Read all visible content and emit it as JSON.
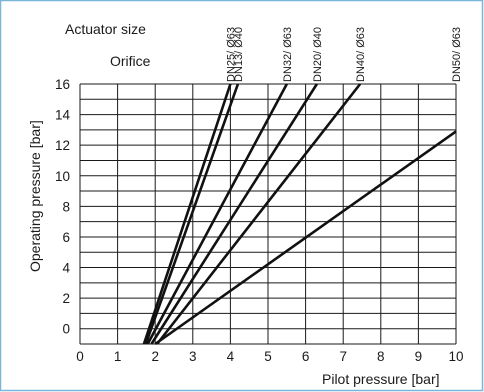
{
  "chart_data": {
    "type": "line",
    "header": {
      "actuator_label": "Actuator size",
      "orifice_label": "Orifice"
    },
    "xlabel": "Pilot pressure [bar]",
    "ylabel": "Operating pressure [bar]",
    "xlim": [
      0,
      10
    ],
    "ylim": [
      -1,
      16
    ],
    "x_ticks": [
      "0",
      "1",
      "2",
      "3",
      "4",
      "5",
      "6",
      "7",
      "8",
      "9",
      "10"
    ],
    "y_ticks": [
      "0",
      "2",
      "4",
      "6",
      "8",
      "10",
      "12",
      "14",
      "16"
    ],
    "grid": true,
    "series": [
      {
        "name": "DN25/ Ø63",
        "x": [
          1.7,
          4.0
        ],
        "y": [
          -1,
          16
        ]
      },
      {
        "name": "DN13/ Ø40",
        "x": [
          1.75,
          4.2
        ],
        "y": [
          -1,
          16
        ]
      },
      {
        "name": "DN32/ Ø63",
        "x": [
          1.8,
          5.5
        ],
        "y": [
          -1,
          16
        ]
      },
      {
        "name": "DN20/ Ø40",
        "x": [
          1.9,
          6.3
        ],
        "y": [
          -1,
          16
        ]
      },
      {
        "name": "DN40/ Ø63",
        "x": [
          2.05,
          7.45
        ],
        "y": [
          -1,
          16
        ]
      },
      {
        "name": "DN50/ Ø63",
        "x": [
          2.0,
          10.0
        ],
        "y": [
          -1,
          12.9
        ]
      }
    ],
    "colors": {
      "frame": "#7ab6d8",
      "grid": "#1a1a1a",
      "line": "#111111"
    }
  }
}
